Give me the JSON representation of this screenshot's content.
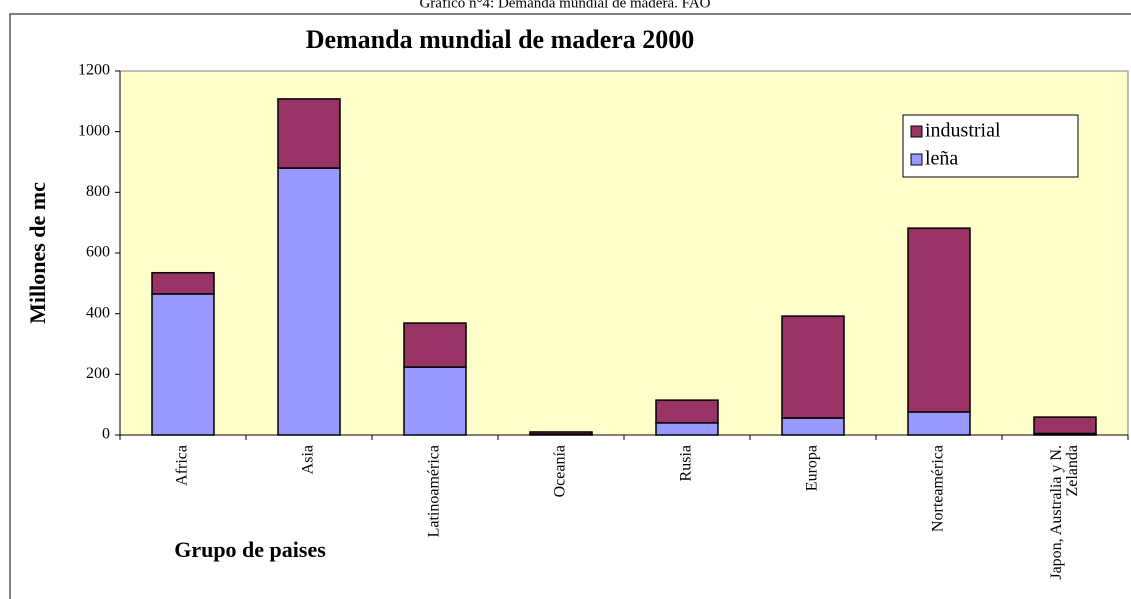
{
  "caption": "Gráfico n°4: Demanda mundial de madera. FAO",
  "chart_data": {
    "type": "stacked_bar",
    "title": "Demanda mundial de madera 2000",
    "y_label": "Millones de mc",
    "x_label": "Grupo de paises",
    "categories": [
      "Africa",
      "Asia",
      "Latinoamérica",
      "Oceanía",
      "Rusia",
      "Europa",
      "Norteamérica",
      "Japon, Australia y N. Zelanda"
    ],
    "series": [
      {
        "name": "leña",
        "color": "#9999ff",
        "values": [
          465,
          880,
          224,
          3,
          40,
          56,
          76,
          5
        ]
      },
      {
        "name": "industrial",
        "color": "#993366",
        "values": [
          70,
          228,
          145,
          7,
          75,
          336,
          606,
          54
        ]
      }
    ],
    "ylim": [
      0,
      1200
    ],
    "yticks": [
      0,
      200,
      400,
      600,
      800,
      1000,
      1200
    ],
    "grid": false,
    "legend": "top-right",
    "background": "#ffffcc"
  }
}
